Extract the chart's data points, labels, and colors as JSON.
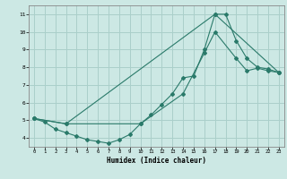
{
  "xlabel": "Humidex (Indice chaleur)",
  "background_color": "#cce8e4",
  "grid_color": "#aacfca",
  "line_color": "#2a7a6a",
  "line1_x": [
    0,
    1,
    2,
    3,
    4,
    5,
    6,
    7,
    8,
    9,
    10,
    11,
    12,
    13,
    14,
    15,
    16,
    17,
    18,
    19,
    20,
    21,
    22,
    23
  ],
  "line1_y": [
    5.1,
    4.9,
    4.5,
    4.3,
    4.1,
    3.9,
    3.8,
    3.7,
    3.9,
    4.2,
    4.8,
    5.3,
    5.9,
    6.5,
    7.4,
    7.5,
    9.0,
    11.0,
    11.0,
    9.5,
    8.5,
    8.0,
    7.9,
    7.7
  ],
  "line2_x": [
    0,
    3,
    10,
    14,
    16,
    17,
    19,
    20,
    21,
    22,
    23
  ],
  "line2_y": [
    5.1,
    4.8,
    4.8,
    6.5,
    8.8,
    10.0,
    8.5,
    7.8,
    7.95,
    7.8,
    7.7
  ],
  "line3_x": [
    0,
    3,
    17,
    23
  ],
  "line3_y": [
    5.1,
    4.8,
    11.0,
    7.7
  ],
  "xlim": [
    -0.5,
    23.5
  ],
  "ylim": [
    3.5,
    11.5
  ],
  "xticks": [
    0,
    1,
    2,
    3,
    4,
    5,
    6,
    7,
    8,
    9,
    10,
    11,
    12,
    13,
    14,
    15,
    16,
    17,
    18,
    19,
    20,
    21,
    22,
    23
  ],
  "yticks": [
    4,
    5,
    6,
    7,
    8,
    9,
    10,
    11
  ]
}
